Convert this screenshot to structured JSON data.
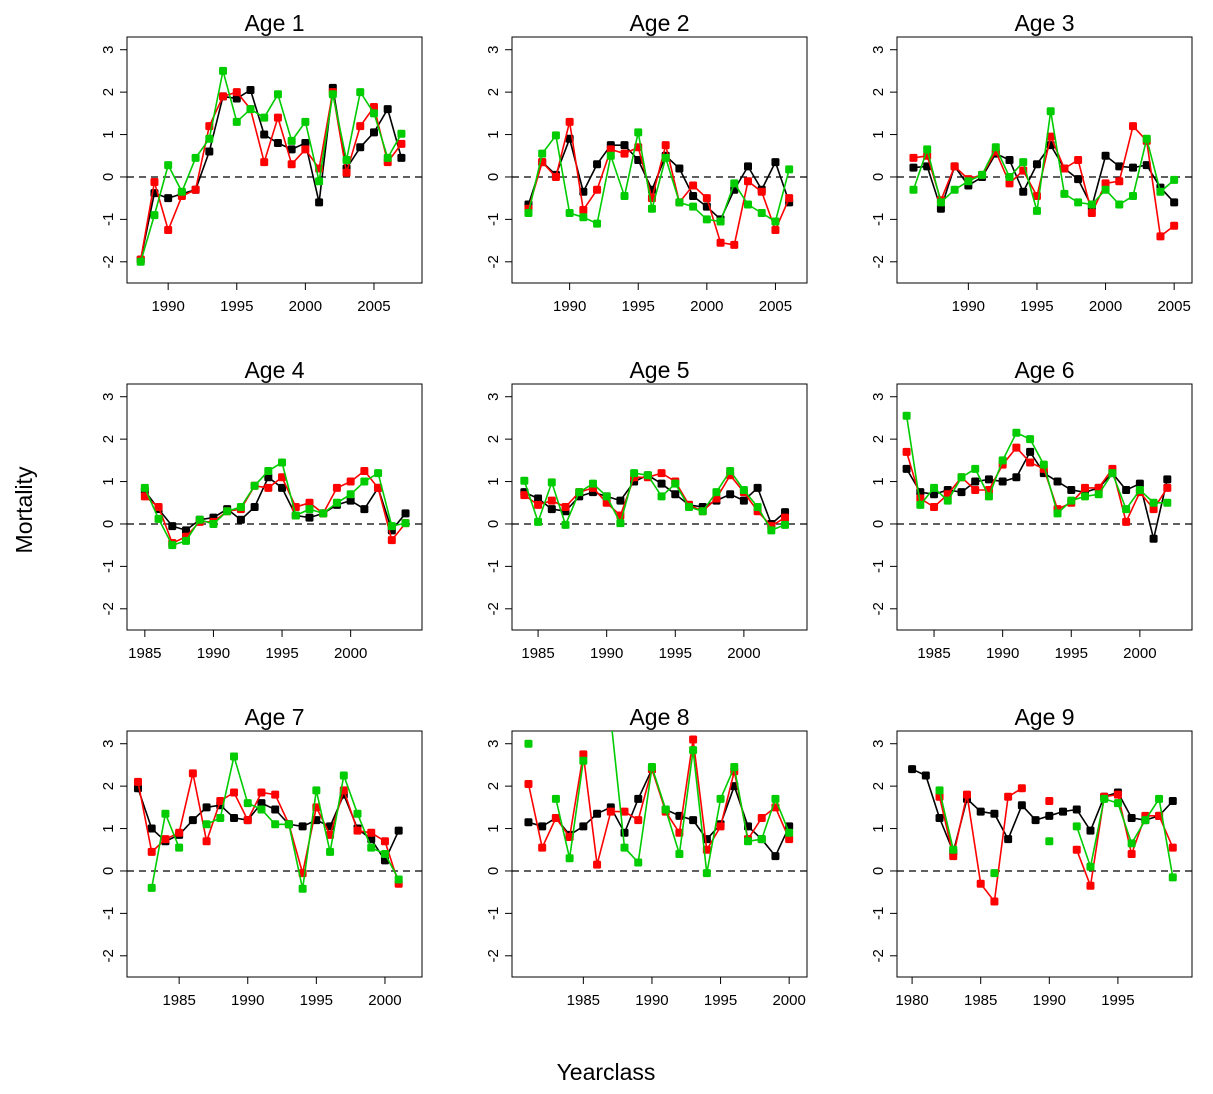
{
  "y_label": "Mortality",
  "x_label": "Yearclass",
  "chart_data": [
    {
      "type": "line",
      "title": "Age 1",
      "x": [
        1988,
        1989,
        1990,
        1991,
        1992,
        1993,
        1994,
        1995,
        1996,
        1997,
        1998,
        1999,
        2000,
        2001,
        2002,
        2003,
        2004,
        2005,
        2006,
        2007
      ],
      "series": [
        {
          "color": "#000000",
          "values": [
            -1.95,
            -0.38,
            -0.5,
            -0.4,
            -0.3,
            0.6,
            1.9,
            1.85,
            2.05,
            1.0,
            0.8,
            0.65,
            0.8,
            -0.6,
            2.1,
            0.2,
            0.7,
            1.05,
            1.6,
            0.45
          ]
        },
        {
          "color": "#ff0000",
          "values": [
            -1.95,
            -0.12,
            -1.25,
            -0.45,
            -0.3,
            1.2,
            1.9,
            2.0,
            1.6,
            0.35,
            1.4,
            0.3,
            0.65,
            0.2,
            2.0,
            0.1,
            1.2,
            1.65,
            0.35,
            0.78
          ]
        },
        {
          "color": "#00cc00",
          "values": [
            -2.0,
            -0.9,
            0.28,
            -0.35,
            0.45,
            0.9,
            2.5,
            1.3,
            1.6,
            1.4,
            1.95,
            0.85,
            1.3,
            -0.1,
            1.95,
            0.4,
            2.0,
            1.5,
            0.45,
            1.02
          ]
        }
      ],
      "xlim": [
        1987.0,
        2008.5
      ],
      "xticks": [
        1990,
        1995,
        2000,
        2005
      ],
      "ylim": [
        -2.5,
        3.3
      ],
      "yticks": [
        -2,
        -1,
        0,
        1,
        2,
        3
      ],
      "reference_line": 0
    },
    {
      "type": "line",
      "title": "Age 2",
      "x": [
        1987,
        1988,
        1989,
        1990,
        1991,
        1992,
        1993,
        1994,
        1995,
        1996,
        1997,
        1998,
        1999,
        2000,
        2001,
        2002,
        2003,
        2004,
        2005,
        2006
      ],
      "series": [
        {
          "color": "#000000",
          "values": [
            -0.65,
            0.35,
            0.05,
            0.9,
            -0.35,
            0.3,
            0.75,
            0.75,
            0.4,
            -0.3,
            0.5,
            0.2,
            -0.45,
            -0.7,
            -1.0,
            -0.3,
            0.25,
            -0.3,
            0.35,
            -0.6
          ]
        },
        {
          "color": "#ff0000",
          "values": [
            -0.75,
            0.35,
            0.0,
            1.3,
            -0.78,
            -0.3,
            0.65,
            0.55,
            0.7,
            -0.5,
            0.75,
            -0.6,
            -0.2,
            -0.5,
            -1.55,
            -1.6,
            -0.1,
            -0.35,
            -1.25,
            -0.5
          ]
        },
        {
          "color": "#00cc00",
          "values": [
            -0.85,
            0.55,
            0.98,
            -0.85,
            -0.95,
            -1.1,
            0.5,
            -0.45,
            1.05,
            -0.75,
            0.45,
            -0.6,
            -0.7,
            -1.0,
            -1.05,
            -0.15,
            -0.65,
            -0.85,
            -1.05,
            0.18
          ]
        }
      ],
      "xlim": [
        1985.8,
        2007.3
      ],
      "xticks": [
        1990,
        1995,
        2000,
        2005
      ],
      "ylim": [
        -2.5,
        3.3
      ],
      "yticks": [
        -2,
        -1,
        0,
        1,
        2,
        3
      ],
      "reference_line": 0
    },
    {
      "type": "line",
      "title": "Age 3",
      "x": [
        1986,
        1987,
        1988,
        1989,
        1990,
        1991,
        1992,
        1993,
        1994,
        1995,
        1996,
        1997,
        1998,
        1999,
        2000,
        2001,
        2002,
        2003,
        2004,
        2005
      ],
      "series": [
        {
          "color": "#000000",
          "values": [
            0.22,
            0.25,
            -0.75,
            0.25,
            -0.2,
            0.0,
            0.55,
            0.4,
            -0.35,
            0.3,
            0.75,
            0.2,
            -0.05,
            -0.7,
            0.5,
            0.25,
            0.22,
            0.28,
            -0.25,
            -0.6
          ]
        },
        {
          "color": "#ff0000",
          "values": [
            0.45,
            0.5,
            -0.55,
            0.25,
            -0.05,
            0.05,
            0.6,
            -0.15,
            0.15,
            -0.45,
            0.95,
            0.2,
            0.4,
            -0.85,
            -0.15,
            -0.1,
            1.2,
            0.85,
            -1.4,
            -1.15
          ]
        },
        {
          "color": "#00cc00",
          "values": [
            -0.3,
            0.65,
            -0.6,
            -0.3,
            -0.1,
            0.05,
            0.7,
            0.0,
            0.35,
            -0.8,
            1.55,
            -0.4,
            -0.6,
            -0.65,
            -0.3,
            -0.65,
            -0.45,
            0.9,
            -0.35,
            -0.07
          ]
        }
      ],
      "xlim": [
        1984.8,
        2006.3
      ],
      "xticks": [
        1990,
        1995,
        2000,
        2005
      ],
      "ylim": [
        -2.5,
        3.3
      ],
      "yticks": [
        -2,
        -1,
        0,
        1,
        2,
        3
      ],
      "reference_line": 0
    },
    {
      "type": "line",
      "title": "Age 4",
      "x": [
        1985,
        1986,
        1987,
        1988,
        1989,
        1990,
        1991,
        1992,
        1993,
        1994,
        1995,
        1996,
        1997,
        1998,
        1999,
        2000,
        2001,
        2002,
        2003,
        2004
      ],
      "series": [
        {
          "color": "#000000",
          "values": [
            0.78,
            0.35,
            -0.05,
            -0.15,
            0.1,
            0.15,
            0.35,
            0.1,
            0.4,
            1.1,
            0.85,
            0.2,
            0.15,
            0.25,
            0.45,
            0.55,
            0.35,
            0.85,
            -0.15,
            0.25
          ]
        },
        {
          "color": "#ff0000",
          "values": [
            0.65,
            0.4,
            -0.45,
            -0.3,
            0.05,
            0.05,
            0.3,
            0.35,
            0.9,
            0.85,
            1.1,
            0.4,
            0.5,
            0.25,
            0.85,
            1.0,
            1.25,
            0.85,
            -0.38,
            0.02
          ]
        },
        {
          "color": "#00cc00",
          "values": [
            0.85,
            0.12,
            -0.5,
            -0.4,
            0.1,
            0.0,
            0.3,
            0.4,
            0.9,
            1.25,
            1.45,
            0.2,
            0.35,
            0.25,
            0.5,
            0.7,
            1.0,
            1.2,
            -0.05,
            0.02
          ]
        }
      ],
      "xlim": [
        1983.7,
        2005.2
      ],
      "xticks": [
        1985,
        1990,
        1995,
        2000
      ],
      "ylim": [
        -2.5,
        3.3
      ],
      "yticks": [
        -2,
        -1,
        0,
        1,
        2,
        3
      ],
      "reference_line": 0
    },
    {
      "type": "line",
      "title": "Age 5",
      "x": [
        1984,
        1985,
        1986,
        1987,
        1988,
        1989,
        1990,
        1991,
        1992,
        1993,
        1994,
        1995,
        1996,
        1997,
        1998,
        1999,
        2000,
        2001,
        2002,
        2003
      ],
      "series": [
        {
          "color": "#000000",
          "values": [
            0.75,
            0.6,
            0.35,
            0.3,
            0.65,
            0.75,
            0.65,
            0.55,
            1.0,
            1.15,
            0.95,
            0.7,
            0.45,
            0.4,
            0.55,
            0.7,
            0.55,
            0.85,
            0.0,
            0.28
          ]
        },
        {
          "color": "#ff0000",
          "values": [
            0.68,
            0.45,
            0.55,
            0.4,
            0.75,
            0.85,
            0.5,
            0.2,
            1.1,
            1.1,
            1.2,
            1.0,
            0.45,
            0.3,
            0.6,
            1.15,
            0.75,
            0.3,
            -0.05,
            0.15
          ]
        },
        {
          "color": "#00cc00",
          "values": [
            1.02,
            0.05,
            0.98,
            -0.02,
            0.75,
            0.95,
            0.65,
            0.02,
            1.2,
            1.15,
            0.65,
            0.95,
            0.4,
            0.3,
            0.75,
            1.25,
            0.8,
            0.4,
            -0.15,
            -0.02
          ]
        }
      ],
      "xlim": [
        1983.1,
        2004.6
      ],
      "xticks": [
        1985,
        1990,
        1995,
        2000
      ],
      "ylim": [
        -2.5,
        3.3
      ],
      "yticks": [
        -2,
        -1,
        0,
        1,
        2,
        3
      ],
      "reference_line": 0
    },
    {
      "type": "line",
      "title": "Age 6",
      "x": [
        1983,
        1984,
        1985,
        1986,
        1987,
        1988,
        1989,
        1990,
        1991,
        1992,
        1993,
        1994,
        1995,
        1996,
        1997,
        1998,
        1999,
        2000,
        2001,
        2002
      ],
      "series": [
        {
          "color": "#000000",
          "values": [
            1.3,
            0.75,
            0.7,
            0.8,
            0.75,
            1.0,
            1.05,
            1.0,
            1.1,
            1.7,
            1.2,
            1.0,
            0.8,
            0.75,
            0.85,
            1.2,
            0.8,
            0.95,
            -0.35,
            1.05
          ]
        },
        {
          "color": "#ff0000",
          "values": [
            1.7,
            0.6,
            0.4,
            0.7,
            1.1,
            0.8,
            0.8,
            1.4,
            1.8,
            1.45,
            1.3,
            0.35,
            0.5,
            0.85,
            0.85,
            1.3,
            0.05,
            0.75,
            0.35,
            0.85
          ]
        },
        {
          "color": "#00cc00",
          "values": [
            2.55,
            0.45,
            0.85,
            0.55,
            1.1,
            1.3,
            0.65,
            1.5,
            2.15,
            2.0,
            1.4,
            0.25,
            0.55,
            0.65,
            0.7,
            1.2,
            0.35,
            0.8,
            0.5,
            0.5
          ]
        }
      ],
      "xlim": [
        1982.3,
        2003.8
      ],
      "xticks": [
        1985,
        1990,
        1995,
        2000
      ],
      "ylim": [
        -2.5,
        3.3
      ],
      "yticks": [
        -2,
        -1,
        0,
        1,
        2,
        3
      ],
      "reference_line": 0
    },
    {
      "type": "line",
      "title": "Age 7",
      "x": [
        1982,
        1983,
        1984,
        1985,
        1986,
        1987,
        1988,
        1989,
        1990,
        1991,
        1992,
        1993,
        1994,
        1995,
        1996,
        1997,
        1998,
        1999,
        2000,
        2001
      ],
      "series": [
        {
          "color": "#000000",
          "values": [
            1.95,
            1.0,
            0.7,
            0.85,
            1.2,
            1.5,
            1.55,
            1.25,
            1.2,
            1.6,
            1.45,
            1.1,
            1.05,
            1.2,
            1.05,
            1.8,
            1.0,
            0.75,
            0.25,
            0.95
          ]
        },
        {
          "color": "#ff0000",
          "values": [
            2.1,
            0.45,
            0.75,
            0.9,
            2.3,
            0.7,
            1.65,
            1.85,
            1.2,
            1.85,
            1.8,
            1.1,
            -0.05,
            1.5,
            0.85,
            1.9,
            0.95,
            0.9,
            0.7,
            -0.3
          ]
        },
        {
          "color": "#00cc00",
          "values": [
            null,
            -0.4,
            1.35,
            0.55,
            null,
            1.1,
            1.25,
            2.7,
            1.6,
            1.45,
            1.1,
            1.1,
            -0.42,
            1.9,
            0.45,
            2.25,
            1.35,
            0.55,
            0.4,
            -0.2
          ]
        }
      ],
      "xlim": [
        1981.2,
        2002.7
      ],
      "xticks": [
        1985,
        1990,
        1995,
        2000
      ],
      "ylim": [
        -2.5,
        3.3
      ],
      "yticks": [
        -2,
        -1,
        0,
        1,
        2,
        3
      ],
      "reference_line": 0
    },
    {
      "type": "line",
      "title": "Age 8",
      "x": [
        1981,
        1982,
        1983,
        1984,
        1985,
        1986,
        1987,
        1988,
        1989,
        1990,
        1991,
        1992,
        1993,
        1994,
        1995,
        1996,
        1997,
        1998,
        1999,
        2000
      ],
      "series": [
        {
          "color": "#000000",
          "values": [
            1.15,
            1.05,
            1.25,
            0.85,
            1.05,
            1.35,
            1.5,
            0.9,
            1.7,
            2.4,
            1.45,
            1.3,
            1.2,
            0.75,
            1.1,
            2.0,
            1.05,
            0.75,
            0.35,
            1.05
          ]
        },
        {
          "color": "#ff0000",
          "values": [
            2.05,
            0.55,
            1.25,
            0.8,
            2.75,
            0.15,
            1.4,
            1.4,
            1.2,
            2.4,
            1.4,
            0.9,
            3.1,
            0.5,
            1.05,
            2.35,
            0.75,
            1.25,
            1.5,
            0.75
          ]
        },
        {
          "color": "#00cc00",
          "values": [
            3.0,
            null,
            1.7,
            0.3,
            2.6,
            null,
            3.6,
            0.55,
            0.2,
            2.45,
            1.45,
            0.4,
            2.85,
            -0.05,
            1.7,
            2.45,
            0.7,
            0.75,
            1.7,
            0.9
          ]
        }
      ],
      "xlim": [
        1979.8,
        2001.3
      ],
      "xticks": [
        1985,
        1990,
        1995,
        2000
      ],
      "ylim": [
        -2.5,
        3.3
      ],
      "yticks": [
        -2,
        -1,
        0,
        1,
        2,
        3
      ],
      "reference_line": 0
    },
    {
      "type": "line",
      "title": "Age 9",
      "x": [
        1980,
        1981,
        1982,
        1983,
        1984,
        1985,
        1986,
        1987,
        1988,
        1989,
        1990,
        1991,
        1992,
        1993,
        1994,
        1995,
        1996,
        1997,
        1998,
        1999
      ],
      "series": [
        {
          "color": "#000000",
          "values": [
            2.4,
            2.25,
            1.25,
            0.45,
            1.7,
            1.4,
            1.35,
            0.75,
            1.55,
            1.2,
            1.3,
            1.4,
            1.45,
            0.95,
            1.75,
            1.85,
            1.25,
            1.2,
            1.3,
            1.65
          ]
        },
        {
          "color": "#ff0000",
          "values": [
            null,
            null,
            1.75,
            0.35,
            1.8,
            -0.3,
            -0.72,
            1.75,
            1.95,
            null,
            1.65,
            null,
            0.5,
            -0.35,
            1.75,
            1.8,
            0.4,
            1.3,
            1.3,
            0.55
          ]
        },
        {
          "color": "#00cc00",
          "values": [
            null,
            null,
            1.9,
            0.5,
            null,
            null,
            -0.05,
            null,
            null,
            null,
            0.7,
            null,
            1.05,
            0.1,
            1.7,
            1.6,
            0.65,
            1.2,
            1.7,
            -0.15
          ]
        }
      ],
      "xlim": [
        1978.9,
        2000.4
      ],
      "xticks": [
        1980,
        1985,
        1990,
        1995
      ],
      "ylim": [
        -2.5,
        3.3
      ],
      "yticks": [
        -2,
        -1,
        0,
        1,
        2,
        3
      ],
      "reference_line": 0
    }
  ]
}
